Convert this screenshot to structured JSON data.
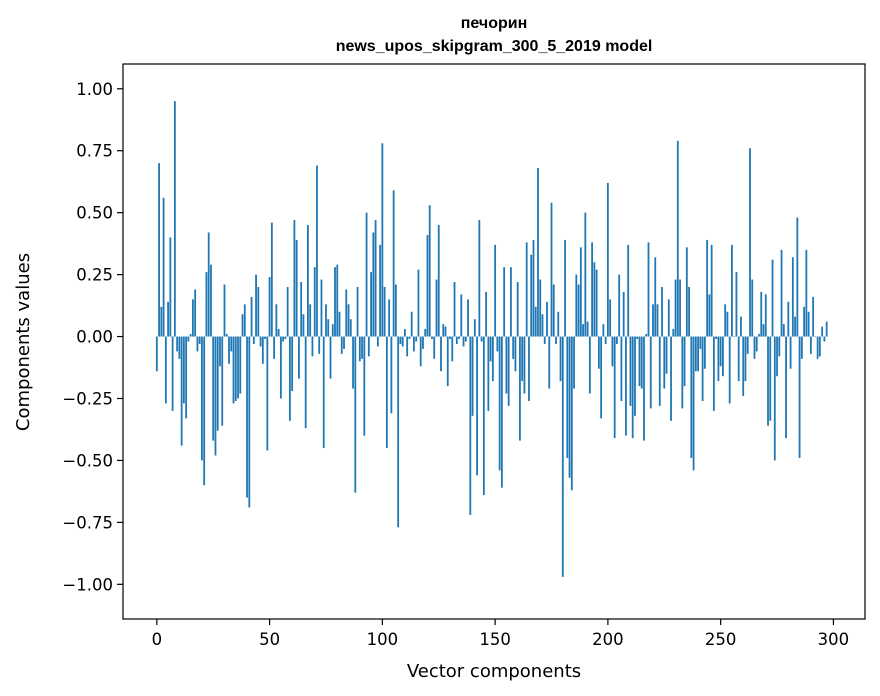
{
  "chart_data": {
    "type": "bar",
    "title": [
      "печорин",
      "news_upos_skipgram_300_5_2019 model"
    ],
    "xlabel": "Vector components",
    "ylabel": "Components values",
    "xlim": [
      -15,
      314
    ],
    "ylim": [
      -1.14,
      1.1
    ],
    "xticks": [
      0,
      50,
      100,
      150,
      200,
      250,
      300
    ],
    "yticks": [
      -1.0,
      -0.75,
      -0.5,
      -0.25,
      0.0,
      0.25,
      0.5,
      0.75,
      1.0
    ],
    "ytick_labels": [
      "−1.00",
      "−0.75",
      "−0.50",
      "−0.25",
      "0.00",
      "0.25",
      "0.50",
      "0.75",
      "1.00"
    ],
    "bar_color": "#1f77b4",
    "grid": false,
    "values": [
      -0.14,
      0.7,
      0.12,
      0.56,
      -0.27,
      0.14,
      0.4,
      -0.3,
      0.95,
      -0.06,
      -0.09,
      -0.44,
      -0.27,
      -0.33,
      -0.02,
      0.01,
      0.15,
      0.19,
      -0.06,
      -0.03,
      -0.5,
      -0.6,
      0.26,
      0.42,
      0.29,
      -0.42,
      -0.48,
      -0.38,
      -0.12,
      -0.36,
      0.21,
      0.01,
      -0.11,
      -0.06,
      -0.27,
      -0.26,
      -0.25,
      -0.23,
      0.09,
      0.13,
      -0.65,
      -0.69,
      0.16,
      -0.03,
      0.25,
      0.2,
      -0.04,
      -0.11,
      -0.01,
      -0.46,
      0.24,
      0.46,
      -0.09,
      0.13,
      0.03,
      -0.25,
      -0.02,
      -0.01,
      0.2,
      -0.34,
      -0.22,
      0.47,
      0.39,
      -0.17,
      0.22,
      0.09,
      -0.37,
      0.45,
      0.13,
      -0.08,
      0.28,
      0.69,
      -0.07,
      0.23,
      -0.45,
      0.13,
      0.07,
      -0.17,
      0.05,
      0.28,
      0.29,
      0.1,
      -0.07,
      -0.05,
      0.19,
      0.13,
      0.07,
      -0.21,
      -0.63,
      0.2,
      -0.1,
      -0.09,
      -0.4,
      0.5,
      -0.08,
      0.26,
      0.42,
      0.47,
      -0.04,
      0.37,
      0.78,
      0.2,
      -0.45,
      0.15,
      -0.31,
      0.59,
      0.21,
      -0.77,
      -0.03,
      -0.04,
      0.03,
      -0.08,
      -0.01,
      0.1,
      -0.06,
      -0.02,
      0.27,
      -0.12,
      -0.05,
      0.03,
      0.41,
      0.53,
      -0.01,
      -0.09,
      0.23,
      0.45,
      -0.14,
      0.05,
      0.04,
      -0.2,
      -0.01,
      -0.1,
      0.22,
      -0.03,
      -0.01,
      0.17,
      -0.04,
      -0.02,
      0.15,
      -0.72,
      -0.32,
      0.07,
      -0.56,
      0.47,
      -0.02,
      -0.64,
      0.18,
      -0.3,
      -0.1,
      -0.18,
      0.37,
      -0.06,
      -0.54,
      -0.61,
      0.28,
      -0.23,
      -0.28,
      0.28,
      -0.09,
      -0.14,
      0.22,
      -0.42,
      -0.18,
      -0.23,
      0.38,
      -0.26,
      0.33,
      0.39,
      0.12,
      0.68,
      0.23,
      0.09,
      -0.03,
      0.14,
      -0.21,
      0.54,
      0.21,
      -0.03,
      0.1,
      -0.18,
      -0.97,
      0.39,
      -0.49,
      -0.57,
      -0.62,
      -0.21,
      0.25,
      0.21,
      0.36,
      0.05,
      0.5,
      0.06,
      -0.23,
      0.38,
      0.3,
      0.27,
      -0.13,
      -0.33,
      0.05,
      -0.03,
      0.62,
      0.15,
      -0.12,
      -0.41,
      -0.03,
      0.25,
      -0.26,
      0.18,
      -0.4,
      0.37,
      -0.28,
      -0.41,
      -0.32,
      -0.01,
      -0.2,
      -0.21,
      -0.42,
      0.01,
      0.38,
      -0.29,
      0.13,
      0.32,
      0.13,
      -0.28,
      0.2,
      -0.21,
      -0.15,
      0.15,
      -0.34,
      0.03,
      0.23,
      0.79,
      0.23,
      -0.29,
      -0.2,
      0.36,
      0.2,
      -0.49,
      -0.54,
      -0.14,
      -0.14,
      -0.05,
      -0.26,
      -0.13,
      0.39,
      0.17,
      0.37,
      -0.3,
      -0.01,
      -0.18,
      -0.12,
      -0.16,
      0.13,
      0.1,
      -0.27,
      0.37,
      0.0,
      0.26,
      -0.18,
      0.08,
      -0.24,
      -0.18,
      -0.07,
      0.76,
      0.23,
      -0.09,
      -0.06,
      0.01,
      0.18,
      0.05,
      0.17,
      -0.36,
      -0.34,
      0.31,
      -0.5,
      -0.16,
      -0.08,
      0.35,
      0.05,
      -0.41,
      0.14,
      -0.13,
      0.32,
      0.08,
      0.48,
      -0.49,
      -0.09,
      0.12,
      0.35,
      0.1,
      -0.07,
      0.16,
      0.0,
      -0.09,
      -0.08,
      0.04,
      -0.02,
      0.06
    ]
  }
}
